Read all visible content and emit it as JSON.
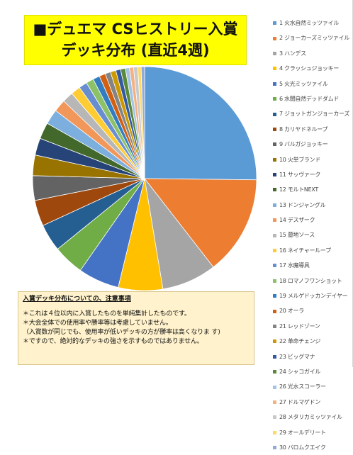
{
  "header": {
    "title_line1": "■デュエマ CSヒストリー入賞",
    "title_line2": "デッキ分布 (直近4週)"
  },
  "notes": {
    "heading": "入賞デッキ分布についての、注意事項",
    "lines": [
      "＊これは４位以内に入賞したものを単純集計したものです。",
      "＊大会全体での使用率や勝率等は考慮していません。",
      "（入賞数が同じでも、使用率が低いデッキの方が勝率は高くなりま す)",
      "＊ですので、絶対的なデッキの強さを示すものではありません。"
    ]
  },
  "chart_data": {
    "type": "pie",
    "title": "■デュエマ CSヒストリー入賞 デッキ分布 (直近4週)",
    "legend_position": "right",
    "start_angle_deg": 90,
    "direction": "clockwise",
    "slices": [
      {
        "label": "1 火水自然ミッツァイル",
        "value": 25.5,
        "color": "#5b9bd5"
      },
      {
        "label": "2 ジョーカーズミッツァイル",
        "value": 14.5,
        "color": "#ed7d31"
      },
      {
        "label": "3 ハンデス",
        "value": 8.0,
        "color": "#a5a5a5"
      },
      {
        "label": "4 クラッシュジョッキー",
        "value": 6.5,
        "color": "#ffc000"
      },
      {
        "label": "5 火光ミッツァイル",
        "value": 6.0,
        "color": "#4472c4"
      },
      {
        "label": "6 水闇自然デッドダムド",
        "value": 4.5,
        "color": "#70ad47"
      },
      {
        "label": "7 ジョットガンジョーカーズ",
        "value": 4.0,
        "color": "#255e91"
      },
      {
        "label": "8 カリヤドネループ",
        "value": 3.8,
        "color": "#9e480e"
      },
      {
        "label": "9 バルガジョッキー",
        "value": 3.6,
        "color": "#636363"
      },
      {
        "label": "10 火単ブランド",
        "value": 3.0,
        "color": "#997300"
      },
      {
        "label": "11 サッヴァーク",
        "value": 2.5,
        "color": "#264478"
      },
      {
        "label": "12 モルトNEXT",
        "value": 2.4,
        "color": "#43682b"
      },
      {
        "label": "13 ドンジャングル",
        "value": 2.2,
        "color": "#7cafdd"
      },
      {
        "label": "14 デスザーク",
        "value": 1.8,
        "color": "#f1975a"
      },
      {
        "label": "15 墓地ソース",
        "value": 1.6,
        "color": "#b7b7b7"
      },
      {
        "label": "16 ネイチャーループ",
        "value": 1.4,
        "color": "#ffcd33"
      },
      {
        "label": "17 水魔導具",
        "value": 1.2,
        "color": "#698ed0"
      },
      {
        "label": "18 ロマノフワンショット",
        "value": 1.1,
        "color": "#8cc168"
      },
      {
        "label": "19 メルゲドッカンデイヤー",
        "value": 1.0,
        "color": "#327dc2"
      },
      {
        "label": "20 オーラ",
        "value": 0.9,
        "color": "#d26012"
      },
      {
        "label": "21 レッドゾーン",
        "value": 0.8,
        "color": "#848484"
      },
      {
        "label": "22 革命チェンジ",
        "value": 0.8,
        "color": "#cc9a00"
      },
      {
        "label": "23 ビッグマナ",
        "value": 0.7,
        "color": "#335aa1"
      },
      {
        "label": "24 シャコガイル",
        "value": 0.7,
        "color": "#5a8a39"
      },
      {
        "label": "26 光水スコーラー",
        "value": 0.6,
        "color": "#a3c4e4"
      },
      {
        "label": "27 ドルマゲドン",
        "value": 0.6,
        "color": "#f4b183"
      },
      {
        "label": "28 メタリカミッツァイル",
        "value": 0.6,
        "color": "#c9c9c9"
      },
      {
        "label": "29 オールデリート",
        "value": 0.5,
        "color": "#ffd966"
      },
      {
        "label": "30 バロムクエイク",
        "value": 0.5,
        "color": "#8faadc"
      }
    ]
  }
}
